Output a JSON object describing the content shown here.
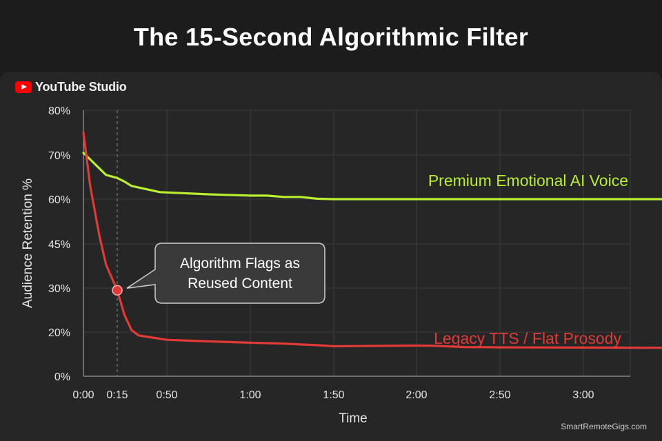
{
  "header": {
    "title": "The 15-Second Algorithmic Filter"
  },
  "brand": {
    "logo_icon": "youtube-play-icon",
    "name": "YouTube Studio"
  },
  "footer": {
    "site": "SmartRemoteGigs.com"
  },
  "colors": {
    "premium": "#b9ef2f",
    "legacy": "#e23a36",
    "background": "#262626",
    "grid": "#3c3c3c"
  },
  "chart_data": {
    "type": "line",
    "xlabel": "Time",
    "ylabel": "Audience Retention %",
    "x_ticks": [
      "0:00",
      "0:15",
      "0:50",
      "1:00",
      "1:50",
      "2:00",
      "2:50",
      "3:00"
    ],
    "y_ticks": [
      "0%",
      "20%",
      "30%",
      "45%",
      "60%",
      "70%",
      "80%"
    ],
    "grid": true,
    "series": [
      {
        "name": "Premium Emotional AI Voice",
        "color": "#b9ef2f",
        "points": [
          [
            "0:00",
            70.5
          ],
          [
            "0:03",
            69
          ],
          [
            "0:07",
            67
          ],
          [
            "0:10",
            65.5
          ],
          [
            "0:15",
            64.8
          ],
          [
            "0:20",
            64
          ],
          [
            "0:25",
            63
          ],
          [
            "0:35",
            62.3
          ],
          [
            "0:45",
            61.6
          ],
          [
            "0:55",
            61.1
          ],
          [
            "1:00",
            60.8
          ],
          [
            "1:10",
            60.8
          ],
          [
            "1:20",
            60.5
          ],
          [
            "1:30",
            60.5
          ],
          [
            "1:40",
            60.1
          ],
          [
            "1:50",
            60
          ],
          [
            "2:00",
            60
          ],
          [
            "2:30",
            60
          ],
          [
            "3:00",
            60
          ],
          [
            "3:20",
            60
          ]
        ]
      },
      {
        "name": "Legacy TTS / Flat Prosody",
        "color": "#e23a36",
        "points": [
          [
            "0:00",
            75
          ],
          [
            "0:03",
            63
          ],
          [
            "0:07",
            48
          ],
          [
            "0:10",
            38
          ],
          [
            "0:15",
            29.5
          ],
          [
            "0:20",
            24
          ],
          [
            "0:25",
            20.5
          ],
          [
            "0:30",
            18.5
          ],
          [
            "0:40",
            17.5
          ],
          [
            "0:50",
            16.5
          ],
          [
            "0:55",
            15.8
          ],
          [
            "1:00",
            15.2
          ],
          [
            "1:10",
            15
          ],
          [
            "1:20",
            14.8
          ],
          [
            "1:30",
            14.4
          ],
          [
            "1:40",
            14.1
          ],
          [
            "1:50",
            13.6
          ],
          [
            "2:00",
            13.9
          ],
          [
            "2:10",
            13.8
          ],
          [
            "2:20",
            13.5
          ],
          [
            "2:30",
            13.2
          ],
          [
            "2:40",
            13.2
          ],
          [
            "2:50",
            13.1
          ],
          [
            "3:00",
            13.0
          ],
          [
            "3:10",
            12.9
          ],
          [
            "3:20",
            12.9
          ]
        ]
      }
    ],
    "marker": {
      "x": "0:15",
      "y": 29.5,
      "guide_line": "dashed"
    },
    "annotation": {
      "lines": [
        "Algorithm Flags as",
        "Reused Content"
      ]
    }
  }
}
